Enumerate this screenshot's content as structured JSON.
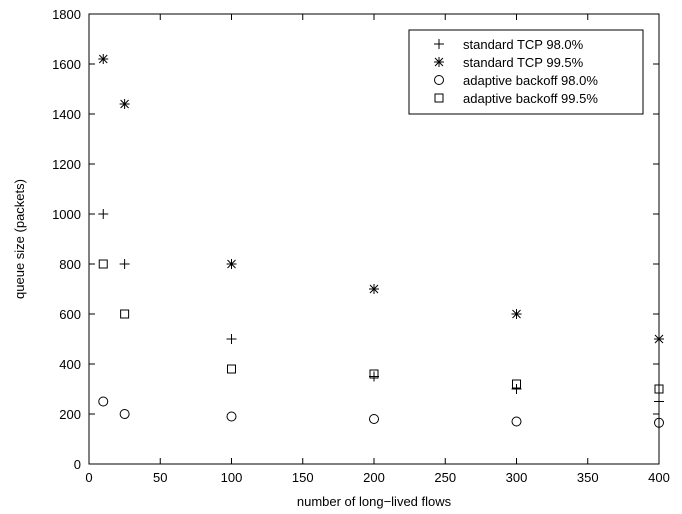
{
  "chart_data": {
    "type": "scatter",
    "xlabel": "number of long−lived flows",
    "ylabel": "queue size (packets)",
    "xlim": [
      0,
      400
    ],
    "ylim": [
      0,
      1800
    ],
    "xticks": [
      0,
      50,
      100,
      150,
      200,
      250,
      300,
      350,
      400
    ],
    "yticks": [
      0,
      200,
      400,
      600,
      800,
      1000,
      1200,
      1400,
      1600,
      1800
    ],
    "grid": false,
    "legend_position": "top-right",
    "series": [
      {
        "name": "standard TCP 98.0%",
        "marker": "plus",
        "points": [
          [
            10,
            1000
          ],
          [
            25,
            800
          ],
          [
            100,
            500
          ],
          [
            200,
            350
          ],
          [
            300,
            300
          ],
          [
            400,
            250
          ]
        ]
      },
      {
        "name": "standard TCP 99.5%",
        "marker": "star",
        "points": [
          [
            10,
            1620
          ],
          [
            25,
            1440
          ],
          [
            100,
            800
          ],
          [
            200,
            700
          ],
          [
            300,
            600
          ],
          [
            400,
            500
          ]
        ]
      },
      {
        "name": "adaptive backoff 98.0%",
        "marker": "circle",
        "points": [
          [
            10,
            250
          ],
          [
            25,
            200
          ],
          [
            100,
            190
          ],
          [
            200,
            180
          ],
          [
            300,
            170
          ],
          [
            400,
            165
          ]
        ]
      },
      {
        "name": "adaptive backoff 99.5%",
        "marker": "square",
        "points": [
          [
            10,
            800
          ],
          [
            25,
            600
          ],
          [
            100,
            380
          ],
          [
            200,
            360
          ],
          [
            300,
            320
          ],
          [
            400,
            300
          ]
        ]
      }
    ]
  }
}
